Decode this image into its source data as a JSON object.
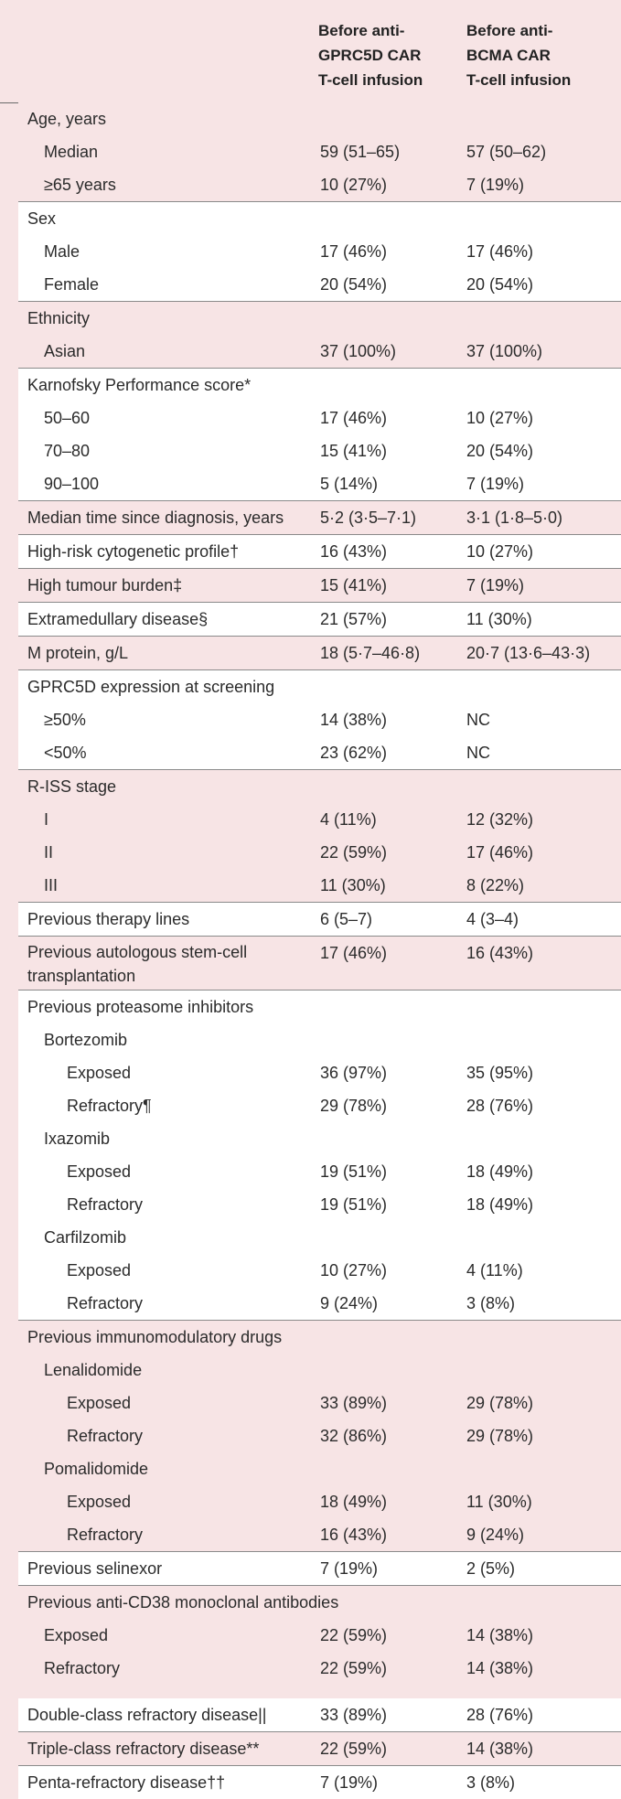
{
  "columns": {
    "col1": "Before anti-\nGPRC5D CAR\nT-cell infusion",
    "col2": "Before anti-\nBCMA CAR\nT-cell infusion"
  },
  "rows": [
    {
      "label": "Age, years",
      "v1": "",
      "v2": "",
      "indent": 0,
      "band": "p"
    },
    {
      "label": "Median",
      "v1": "59 (51–65)",
      "v2": "57 (50–62)",
      "indent": 1,
      "band": "p"
    },
    {
      "label": "≥65 years",
      "v1": "10 (27%)",
      "v2": "7 (19%)",
      "indent": 1,
      "band": "p"
    },
    {
      "label": "Sex",
      "v1": "",
      "v2": "",
      "indent": 0,
      "band": "w"
    },
    {
      "label": "Male",
      "v1": "17 (46%)",
      "v2": "17 (46%)",
      "indent": 1,
      "band": "w"
    },
    {
      "label": "Female",
      "v1": "20 (54%)",
      "v2": "20 (54%)",
      "indent": 1,
      "band": "w"
    },
    {
      "label": "Ethnicity",
      "v1": "",
      "v2": "",
      "indent": 0,
      "band": "p"
    },
    {
      "label": "Asian",
      "v1": "37 (100%)",
      "v2": "37 (100%)",
      "indent": 1,
      "band": "p"
    },
    {
      "label": "Karnofsky Performance score*",
      "v1": "",
      "v2": "",
      "indent": 0,
      "band": "w"
    },
    {
      "label": "50–60",
      "v1": "17 (46%)",
      "v2": "10 (27%)",
      "indent": 1,
      "band": "w"
    },
    {
      "label": "70–80",
      "v1": "15 (41%)",
      "v2": "20 (54%)",
      "indent": 1,
      "band": "w"
    },
    {
      "label": "90–100",
      "v1": "5 (14%)",
      "v2": "7 (19%)",
      "indent": 1,
      "band": "w"
    },
    {
      "label": "Median time since diagnosis, years",
      "v1": "5·2 (3·5–7·1)",
      "v2": "3·1 (1·8–5·0)",
      "indent": 0,
      "band": "p"
    },
    {
      "label": "High-risk cytogenetic profile†",
      "v1": "16 (43%)",
      "v2": "10 (27%)",
      "indent": 0,
      "band": "w"
    },
    {
      "label": "High tumour burden‡",
      "v1": "15 (41%)",
      "v2": "7 (19%)",
      "indent": 0,
      "band": "p"
    },
    {
      "label": "Extramedullary disease§",
      "v1": "21 (57%)",
      "v2": "11 (30%)",
      "indent": 0,
      "band": "w"
    },
    {
      "label": "M protein, g/L",
      "v1": "18 (5·7–46·8)",
      "v2": "20·7 (13·6–43·3)",
      "indent": 0,
      "band": "p"
    },
    {
      "label": "GPRC5D expression at screening",
      "v1": "",
      "v2": "",
      "indent": 0,
      "band": "w"
    },
    {
      "label": "≥50%",
      "v1": "14 (38%)",
      "v2": "NC",
      "indent": 1,
      "band": "w"
    },
    {
      "label": "<50%",
      "v1": "23 (62%)",
      "v2": "NC",
      "indent": 1,
      "band": "w"
    },
    {
      "label": "R-ISS stage",
      "v1": "",
      "v2": "",
      "indent": 0,
      "band": "p"
    },
    {
      "label": "I",
      "v1": "4 (11%)",
      "v2": "12 (32%)",
      "indent": 1,
      "band": "p"
    },
    {
      "label": "II",
      "v1": "22 (59%)",
      "v2": "17 (46%)",
      "indent": 1,
      "band": "p"
    },
    {
      "label": "III",
      "v1": "11 (30%)",
      "v2": "8 (22%)",
      "indent": 1,
      "band": "p"
    },
    {
      "label": "Previous therapy lines",
      "v1": "6 (5–7)",
      "v2": "4 (3–4)",
      "indent": 0,
      "band": "w"
    },
    {
      "label": "Previous autologous stem-cell transplantation",
      "v1": "17 (46%)",
      "v2": "16 (43%)",
      "indent": 0,
      "band": "p",
      "tall": true
    },
    {
      "label": "Previous proteasome inhibitors",
      "v1": "",
      "v2": "",
      "indent": 0,
      "band": "w"
    },
    {
      "label": "Bortezomib",
      "v1": "",
      "v2": "",
      "indent": 1,
      "band": "w"
    },
    {
      "label": "Exposed",
      "v1": "36 (97%)",
      "v2": "35 (95%)",
      "indent": 2,
      "band": "w"
    },
    {
      "label": "Refractory¶",
      "v1": "29 (78%)",
      "v2": "28 (76%)",
      "indent": 2,
      "band": "w"
    },
    {
      "label": "Ixazomib",
      "v1": "",
      "v2": "",
      "indent": 1,
      "band": "w"
    },
    {
      "label": "Exposed",
      "v1": "19 (51%)",
      "v2": "18 (49%)",
      "indent": 2,
      "band": "w"
    },
    {
      "label": "Refractory",
      "v1": "19 (51%)",
      "v2": "18 (49%)",
      "indent": 2,
      "band": "w"
    },
    {
      "label": "Carfilzomib",
      "v1": "",
      "v2": "",
      "indent": 1,
      "band": "w"
    },
    {
      "label": "Exposed",
      "v1": "10 (27%)",
      "v2": "4 (11%)",
      "indent": 2,
      "band": "w"
    },
    {
      "label": "Refractory",
      "v1": "9 (24%)",
      "v2": "3 (8%)",
      "indent": 2,
      "band": "w"
    },
    {
      "label": "Previous immunomodulatory drugs",
      "v1": "",
      "v2": "",
      "indent": 0,
      "band": "p"
    },
    {
      "label": "Lenalidomide",
      "v1": "",
      "v2": "",
      "indent": 1,
      "band": "p"
    },
    {
      "label": "Exposed",
      "v1": "33 (89%)",
      "v2": "29 (78%)",
      "indent": 2,
      "band": "p"
    },
    {
      "label": "Refractory",
      "v1": "32 (86%)",
      "v2": "29 (78%)",
      "indent": 2,
      "band": "p"
    },
    {
      "label": "Pomalidomide",
      "v1": "",
      "v2": "",
      "indent": 1,
      "band": "p"
    },
    {
      "label": "Exposed",
      "v1": "18 (49%)",
      "v2": "11 (30%)",
      "indent": 2,
      "band": "p"
    },
    {
      "label": "Refractory",
      "v1": "16 (43%)",
      "v2": "9 (24%)",
      "indent": 2,
      "band": "p"
    },
    {
      "label": "Previous selinexor",
      "v1": "7 (19%)",
      "v2": "2 (5%)",
      "indent": 0,
      "band": "w"
    },
    {
      "label": "Previous anti-CD38 monoclonal antibodies",
      "v1": "",
      "v2": "",
      "indent": 0,
      "band": "p"
    },
    {
      "label": "Exposed",
      "v1": "22 (59%)",
      "v2": "14 (38%)",
      "indent": 1,
      "band": "p"
    },
    {
      "label": "Refractory",
      "v1": "22 (59%)",
      "v2": "14 (38%)",
      "indent": 1,
      "band": "p",
      "gap_after": true
    },
    {
      "label": "Double-class refractory disease||",
      "v1": "33 (89%)",
      "v2": "28 (76%)",
      "indent": 0,
      "band": "w"
    },
    {
      "label": "Triple-class refractory disease**",
      "v1": "22 (59%)",
      "v2": "14 (38%)",
      "indent": 0,
      "band": "p"
    },
    {
      "label": "Penta-refractory disease††",
      "v1": "7 (19%)",
      "v2": "3 (8%)",
      "indent": 0,
      "band": "w"
    }
  ],
  "colors": {
    "pink": "#f7e4e5",
    "white": "#ffffff",
    "rule": "#8a8a8a"
  }
}
